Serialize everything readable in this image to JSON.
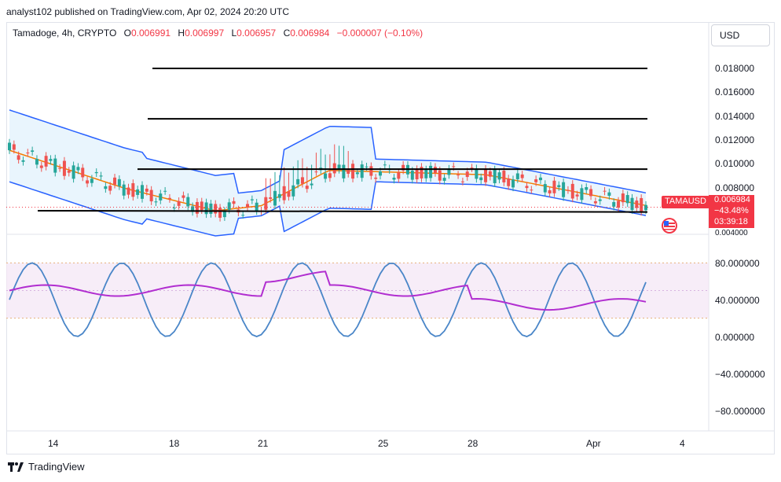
{
  "header": {
    "published": "analyst102 published on TradingView.com, Apr 02, 2024 20:20 UTC"
  },
  "legend": {
    "symbol": "Tamadoge, 4h, CRYPTO",
    "o_label": "O",
    "o": "0.006991",
    "h_label": "H",
    "h": "0.006997",
    "l_label": "L",
    "l": "0.006957",
    "c_label": "C",
    "c": "0.006984",
    "change": "−0.000007 (−0.10%)"
  },
  "currency": "USD",
  "price_axis": [
    "0.018000",
    "0.016000",
    "0.014000",
    "0.012000",
    "0.010000",
    "0.008000",
    "0.004000"
  ],
  "price_tag": {
    "symbol": "TAMAUSD",
    "price": "0.006984",
    "pct": "−43.48%",
    "countdown": "03:39:18"
  },
  "osc_axis": [
    "80.000000",
    "40.000000",
    "0.000000",
    "−40.000000",
    "−80.000000"
  ],
  "dates": [
    "14",
    "18",
    "21",
    "25",
    "28",
    "Apr",
    "4"
  ],
  "footer": {
    "brand": "TradingView"
  },
  "colors": {
    "up": "#26a69a",
    "down": "#ef5350",
    "bb": "#2962ff",
    "ma": "#f57c00",
    "rsi": "#b12ed0",
    "stoch": "#4a86c8",
    "tag": "#f23645"
  },
  "chart_data": {
    "type": "candlestick",
    "last_close": 0.006984,
    "y_range": [
      0.004,
      0.019
    ],
    "horizontal_lines": [
      0.018,
      0.014,
      0.01,
      0.0067
    ],
    "oscillator_range": [
      -100,
      100
    ],
    "oscillator_band": [
      20,
      80
    ]
  }
}
